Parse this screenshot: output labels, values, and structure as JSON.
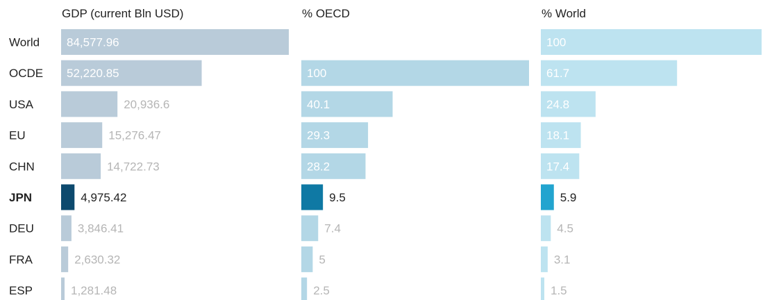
{
  "chart_data": {
    "type": "bar",
    "orientation": "horizontal",
    "categories": [
      "World",
      "OCDE",
      "USA",
      "EU",
      "CHN",
      "JPN",
      "DEU",
      "FRA",
      "ESP"
    ],
    "highlight": "JPN",
    "series": [
      {
        "name": "GDP (current Bln USD)",
        "values": [
          84577.96,
          52220.85,
          20936.6,
          15276.47,
          14722.73,
          4975.42,
          3846.41,
          2630.32,
          1281.48
        ],
        "labels": [
          "84,577.96",
          "52,220.85",
          "20,936.6",
          "15,276.47",
          "14,722.73",
          "4,975.42",
          "3,846.41",
          "2,630.32",
          "1,281.48"
        ],
        "max": 84577.96,
        "color": "#b9cbd9",
        "highlight_color": "#0d4a6e"
      },
      {
        "name": "% OECD",
        "values": [
          null,
          100,
          40.1,
          29.3,
          28.2,
          9.5,
          7.4,
          5,
          2.5
        ],
        "labels": [
          "",
          "100",
          "40.1",
          "29.3",
          "28.2",
          "9.5",
          "7.4",
          "5",
          "2.5"
        ],
        "max": 100,
        "color": "#b3d7e6",
        "highlight_color": "#0f79a4"
      },
      {
        "name": "% World",
        "values": [
          100,
          61.7,
          24.8,
          18.1,
          17.4,
          5.9,
          4.5,
          3.1,
          1.5
        ],
        "labels": [
          "100",
          "61.7",
          "24.8",
          "18.1",
          "17.4",
          "5.9",
          "4.5",
          "3.1",
          "1.5"
        ],
        "max": 100,
        "color": "#bde3f0",
        "highlight_color": "#22a4cf"
      }
    ]
  },
  "colors": {
    "muted_label": "#b5b5b5",
    "inside_label": "#ffffff",
    "dark_text": "#222222"
  }
}
